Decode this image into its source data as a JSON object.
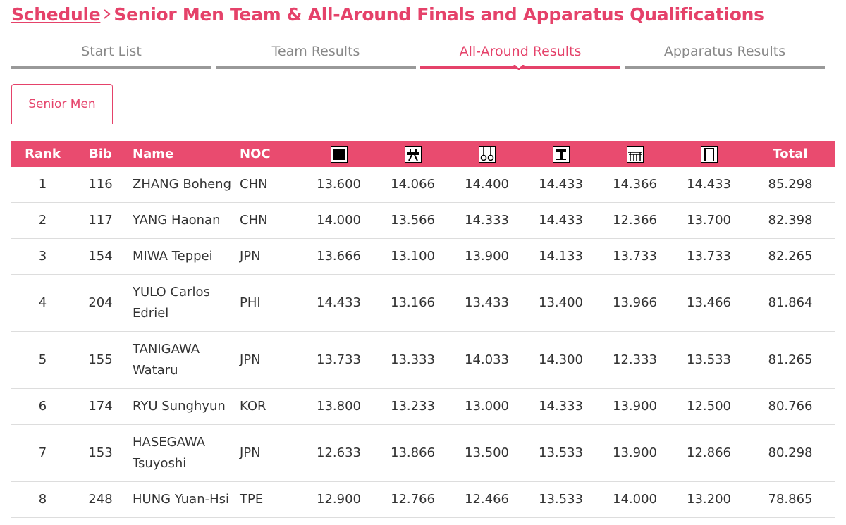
{
  "breadcrumb": {
    "link": "Schedule",
    "title": "Senior Men Team & All-Around Finals and Apparatus Qualifications"
  },
  "tabs": {
    "items": [
      "Start List",
      "Team Results",
      "All-Around Results",
      "Apparatus Results"
    ],
    "active": 2
  },
  "subtab": "Senior Men",
  "table": {
    "columns": {
      "rank": "Rank",
      "bib": "Bib",
      "name": "Name",
      "noc": "NOC",
      "total": "Total"
    },
    "rows": [
      [
        "1",
        "116",
        "ZHANG Boheng",
        "CHN",
        "13.600",
        "14.066",
        "14.400",
        "14.433",
        "14.366",
        "14.433",
        "85.298"
      ],
      [
        "2",
        "117",
        "YANG Haonan",
        "CHN",
        "14.000",
        "13.566",
        "14.333",
        "14.433",
        "12.366",
        "13.700",
        "82.398"
      ],
      [
        "3",
        "154",
        "MIWA Teppei",
        "JPN",
        "13.666",
        "13.100",
        "13.900",
        "14.133",
        "13.733",
        "13.733",
        "82.265"
      ],
      [
        "4",
        "204",
        "YULO Carlos Edriel",
        "PHI",
        "14.433",
        "13.166",
        "13.433",
        "13.400",
        "13.966",
        "13.466",
        "81.864"
      ],
      [
        "5",
        "155",
        "TANIGAWA Wataru",
        "JPN",
        "13.733",
        "13.333",
        "14.033",
        "14.300",
        "12.333",
        "13.533",
        "81.265"
      ],
      [
        "6",
        "174",
        "RYU Sunghyun",
        "KOR",
        "13.800",
        "13.233",
        "13.000",
        "14.333",
        "13.900",
        "12.500",
        "80.766"
      ],
      [
        "7",
        "153",
        "HASEGAWA Tsuyoshi",
        "JPN",
        "12.633",
        "13.866",
        "13.500",
        "13.533",
        "13.900",
        "12.866",
        "80.298"
      ],
      [
        "8",
        "248",
        "HUNG Yuan-Hsi",
        "TPE",
        "12.900",
        "12.766",
        "12.466",
        "13.533",
        "14.000",
        "13.200",
        "78.865"
      ]
    ]
  }
}
